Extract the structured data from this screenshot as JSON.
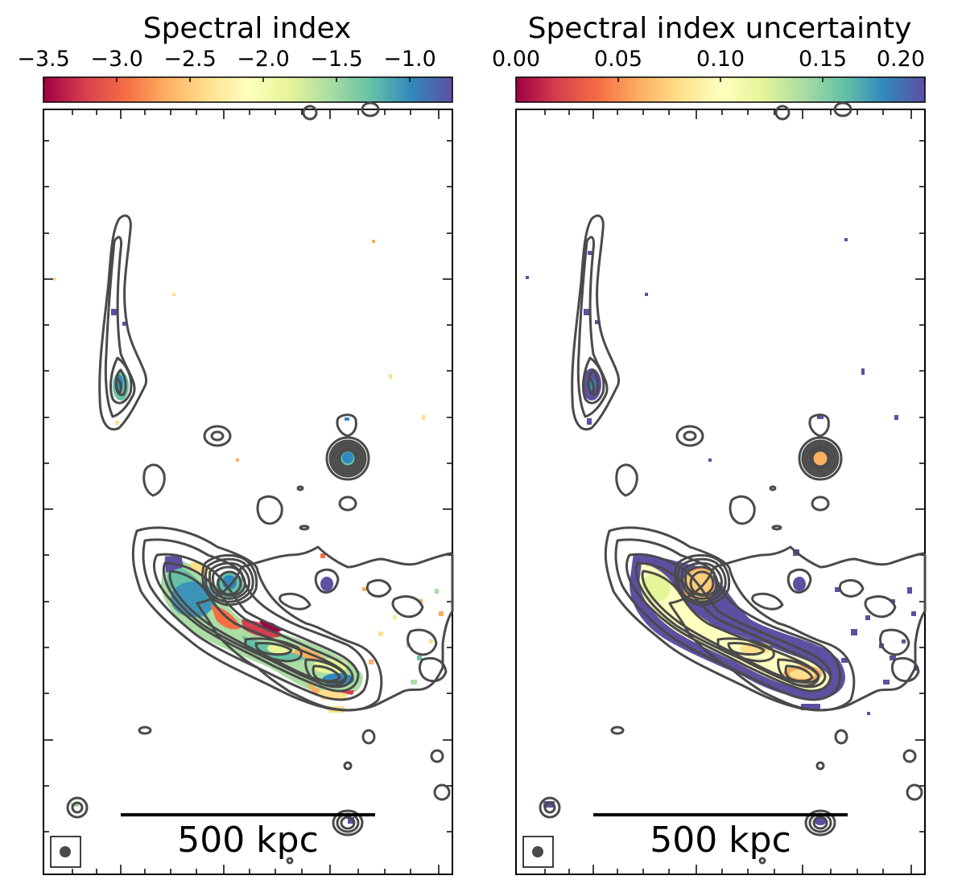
{
  "panels": [
    {
      "title": "Spectral index",
      "colorbar_ticks": [
        "−3.5",
        "−3.0",
        "−2.5",
        "−2.0",
        "−1.5",
        "−1.0"
      ],
      "scalebar_label": "500 kpc"
    },
    {
      "title": "Spectral index uncertainty",
      "colorbar_ticks": [
        "0.00",
        "0.05",
        "0.10",
        "0.15",
        "0.20"
      ],
      "scalebar_label": "500 kpc"
    }
  ],
  "colormap": [
    "#9e0142",
    "#d53e4f",
    "#f46d43",
    "#fdae61",
    "#fee08b",
    "#ffffbf",
    "#e6f598",
    "#abdda4",
    "#66c2a5",
    "#3288bd",
    "#5e4fa2"
  ],
  "contour_color": "#4a4a4a"
}
